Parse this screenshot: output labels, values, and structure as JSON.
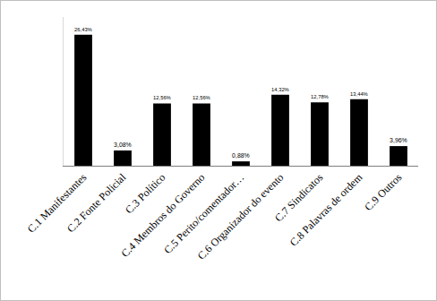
{
  "chart_data": {
    "type": "bar",
    "categories": [
      "C.1 Manifestantes",
      "C.2 Fonte Policial",
      "C.3 Político",
      "C.4 Membros do Governo",
      "C.5 Perito/comentador…",
      "C.6 Organizador do evento",
      "C.7 Sindicatos",
      "C.8 Palavras de ordem",
      "C.9 Outros"
    ],
    "values": [
      26.43,
      3.08,
      12.56,
      12.56,
      0.88,
      14.32,
      12.78,
      13.44,
      3.96
    ],
    "value_labels": [
      "26,43%",
      "3,08%",
      "12,56%",
      "12,56%",
      "0,88%",
      "14,32%",
      "12,78%",
      "13,44%",
      "3,96%"
    ],
    "color": "#000000",
    "ylim": [
      0,
      30
    ],
    "grid": false,
    "data_labels": true,
    "tick_labels": "x"
  }
}
